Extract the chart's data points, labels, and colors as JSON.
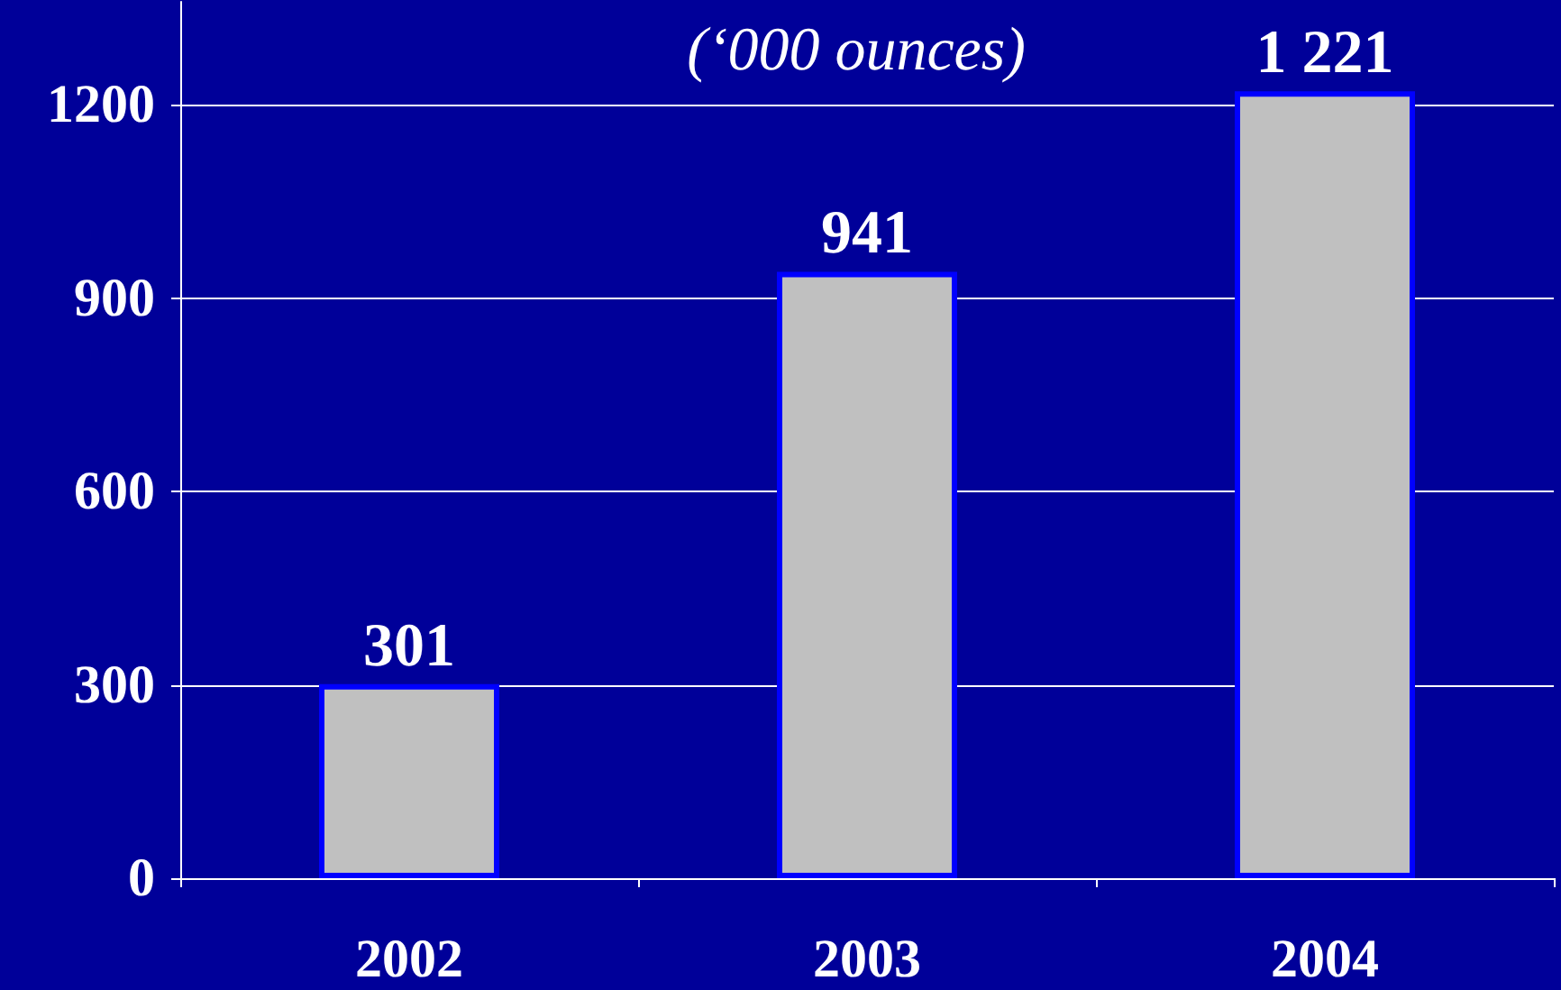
{
  "chart_data": {
    "type": "bar",
    "title": "(‘000 ounces)",
    "categories": [
      "2002",
      "2003",
      "2004"
    ],
    "values": [
      301,
      941,
      1221
    ],
    "value_labels": [
      "301",
      "941",
      "1 221"
    ],
    "color": "#c0c0c0",
    "ylim": [
      0,
      1360
    ],
    "yticks": [
      0,
      300,
      600,
      900,
      1200
    ],
    "grid": "y"
  }
}
